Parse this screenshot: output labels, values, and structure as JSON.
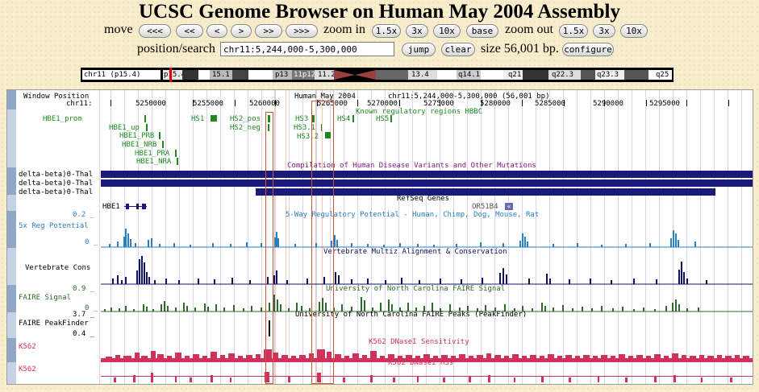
{
  "page_title": "UCSC Genome Browser on Human May 2004 Assembly",
  "nav": {
    "move_label": "move",
    "move_buttons": [
      "<<<",
      "<<",
      "<",
      ">",
      ">>",
      ">>>"
    ],
    "zoom_in_label": "zoom in",
    "zoom_in_buttons": [
      "1.5x",
      "3x",
      "10x",
      "base"
    ],
    "zoom_out_label": "zoom out",
    "zoom_out_buttons": [
      "1.5x",
      "3x",
      "10x"
    ]
  },
  "search": {
    "label": "position/search",
    "value": "chr11:5,244,000-5,300,000",
    "jump": "jump",
    "clear": "clear",
    "size_text": "size 56,001 bp.",
    "configure": "configure"
  },
  "ideogram": {
    "label": "chr11 (p15.4)",
    "bands": [
      "p15.4",
      "15.1",
      "p13",
      "11p12",
      "11.2",
      "13.4",
      "q14.1",
      "q21",
      "q22.3",
      "q23.3",
      "q25"
    ]
  },
  "tracks": {
    "window_position": "Window Position",
    "chr_label": "chr11:",
    "assembly": "Human May 2004",
    "range": "chr11:5,244,000-5,300,000 (56,001 bp)",
    "ruler_ticks": [
      "5250000",
      "5255000",
      "5260000",
      "5265000",
      "5270000",
      "5275000",
      "5280000",
      "5285000",
      "5290000",
      "5295000"
    ],
    "reg_track_title": "Known regulatory regions HBBC",
    "reg_left": [
      "HBE1_prom",
      "HBE1_up",
      "HBE1_PRB",
      "HBE1_NRB",
      "HBE1_PRA",
      "HBE1_NRA"
    ],
    "reg_hs": [
      "HS1",
      "HS2_pos",
      "HS2_neg",
      "HS3",
      "HS3.1",
      "HS3.2",
      "HS4",
      "HS5"
    ],
    "disease_title": "Compilation of Human Disease Variants and Other Mutations",
    "disease_labels": [
      "delta-beta)0-Thal",
      "delta-beta)0-Thal",
      "delta-beta)0-Thal"
    ],
    "refseq_title": "RefSeq Genes",
    "refseq_genes": [
      "HBE1",
      "OR51B4"
    ],
    "reg_potential_title": "5-Way Regulatory Potential - Human, Chimp, Dog, Mouse, Rat",
    "reg_potential_label": "5x Reg Potential",
    "reg_potential_max": "0.2 _",
    "reg_potential_min": "0 _",
    "cons_title": "Vertebrate Multiz Alignment & Conservation",
    "cons_label": "Vertebrate Cons",
    "faire_title": "University of North Carolina FAIRE Signal",
    "faire_label": "FAIRE Signal",
    "faire_max": "0.9 _",
    "faire_min": "0 _",
    "peak_title": "University of North Carolina FAIRE Peaks (PeakFinder)",
    "peak_label": "FAIRE PeakFinder",
    "peak_max": "3.7 _",
    "peak_min": "0.4 _",
    "dnase_title": "K562 DNaseI Sensitivity",
    "dnase_label": "K562",
    "hss_title": "K562 DNaseI HSs",
    "hss_label": "K562"
  },
  "colors": {
    "background": "#f7eccb",
    "reg_green": "#1e8a1e",
    "disease_navy": "#1a1a7a",
    "reg_potential": "#2a7fbf",
    "conservation": "#101060",
    "faire": "#2f6b2a",
    "dnase": "#d0305a",
    "highlight": "#cc5533"
  }
}
